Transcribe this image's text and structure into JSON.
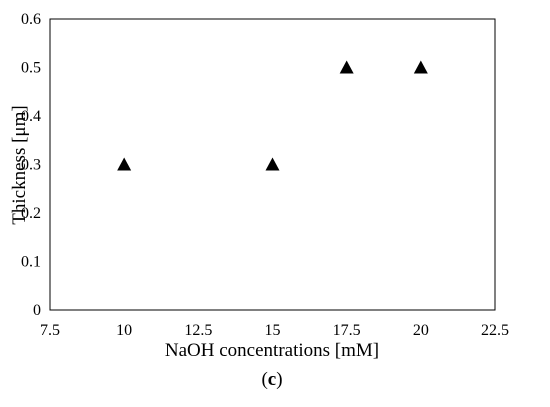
{
  "chart_data": {
    "type": "scatter",
    "title": "",
    "xlabel": "NaOH concentrations [mM]",
    "ylabel": "Thickness [μm]",
    "xlim": [
      7.5,
      22.5
    ],
    "ylim": [
      0,
      0.6
    ],
    "x_ticks": [
      "7.5",
      "10",
      "12.5",
      "15",
      "17.5",
      "20",
      "22.5"
    ],
    "y_ticks": [
      "0",
      "0.1",
      "0.2",
      "0.3",
      "0.4",
      "0.5",
      "0.6"
    ],
    "grid": false,
    "legend": "none",
    "marker": "triangle",
    "marker_color": "#000000",
    "series": [
      {
        "x": [
          10,
          15,
          17.5,
          20
        ],
        "y": [
          0.3,
          0.3,
          0.5,
          0.5
        ]
      }
    ]
  },
  "caption": {
    "open": "(",
    "letter": "c",
    "close": ")"
  }
}
